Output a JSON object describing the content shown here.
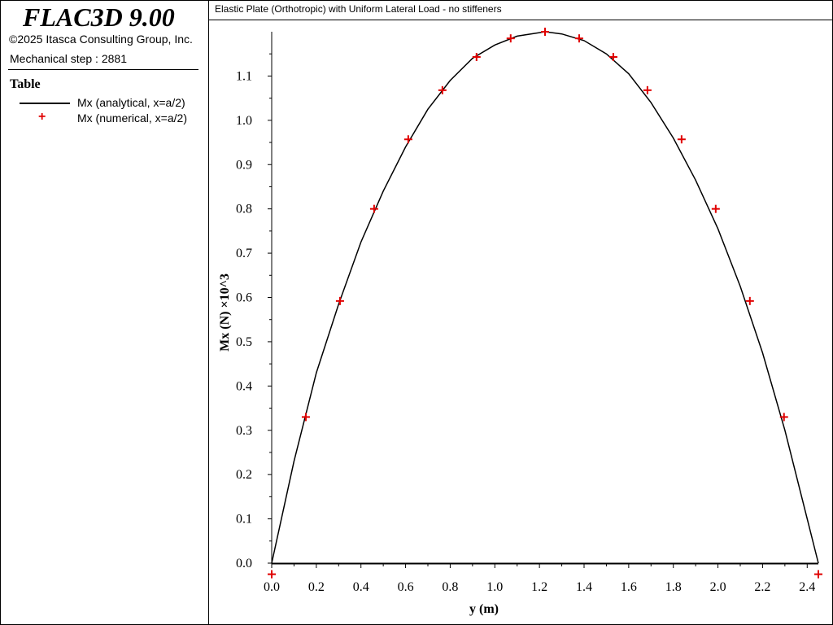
{
  "app": {
    "title": "FLAC3D 9.00",
    "copyright": "©2025 Itasca Consulting Group, Inc.",
    "step": "Mechanical step : 2881"
  },
  "legend": {
    "title": "Table",
    "items": [
      {
        "label": "Mx (analytical, x=a/2)",
        "style": "line",
        "color": "#000000"
      },
      {
        "label": "Mx (numerical, x=a/2)",
        "style": "plus-marker",
        "color": "#e00000"
      }
    ]
  },
  "plot": {
    "title": "Elastic Plate (Orthotropic) with Uniform Lateral Load - no stiffeners"
  },
  "chart_data": {
    "type": "line",
    "title": "Elastic Plate (Orthotropic) with Uniform Lateral Load - no stiffeners",
    "xlabel": "y (m)",
    "ylabel": "Mx (N) ×10^3",
    "xlim": [
      0.0,
      2.45
    ],
    "ylim": [
      -0.02,
      1.2
    ],
    "xticks": [
      "0.0",
      "0.2",
      "0.4",
      "0.6",
      "0.8",
      "1.0",
      "1.2",
      "1.4",
      "1.6",
      "1.8",
      "2.0",
      "2.2",
      "2.4"
    ],
    "yticks": [
      "0.0",
      "0.1",
      "0.2",
      "0.3",
      "0.4",
      "0.5",
      "0.6",
      "0.7",
      "0.8",
      "0.9",
      "1.0",
      "1.1"
    ],
    "grid": false,
    "legend_position": "left-panel",
    "series": [
      {
        "name": "Mx (analytical, x=a/2)",
        "type": "line",
        "color": "#000000",
        "x": [
          0.0,
          0.1,
          0.2,
          0.3,
          0.4,
          0.5,
          0.6,
          0.7,
          0.8,
          0.9,
          1.0,
          1.1,
          1.2,
          1.225,
          1.3,
          1.4,
          1.5,
          1.6,
          1.7,
          1.8,
          1.9,
          2.0,
          2.1,
          2.2,
          2.3,
          2.4,
          2.45
        ],
        "y": [
          0.0,
          0.23,
          0.43,
          0.585,
          0.725,
          0.84,
          0.94,
          1.025,
          1.09,
          1.14,
          1.17,
          1.19,
          1.198,
          1.2,
          1.195,
          1.18,
          1.15,
          1.105,
          1.04,
          0.96,
          0.865,
          0.755,
          0.625,
          0.475,
          0.3,
          0.1,
          0.0
        ]
      },
      {
        "name": "Mx (numerical, x=a/2)",
        "type": "scatter",
        "marker": "+",
        "color": "#e00000",
        "x": [
          0.0,
          0.153,
          0.306,
          0.459,
          0.612,
          0.765,
          0.918,
          1.071,
          1.225,
          1.378,
          1.531,
          1.684,
          1.837,
          1.99,
          2.143,
          2.296,
          2.45
        ],
        "y": [
          -0.025,
          0.33,
          0.592,
          0.8,
          0.957,
          1.068,
          1.143,
          1.185,
          1.2,
          1.185,
          1.143,
          1.068,
          0.957,
          0.8,
          0.592,
          0.33,
          -0.025
        ]
      }
    ]
  }
}
